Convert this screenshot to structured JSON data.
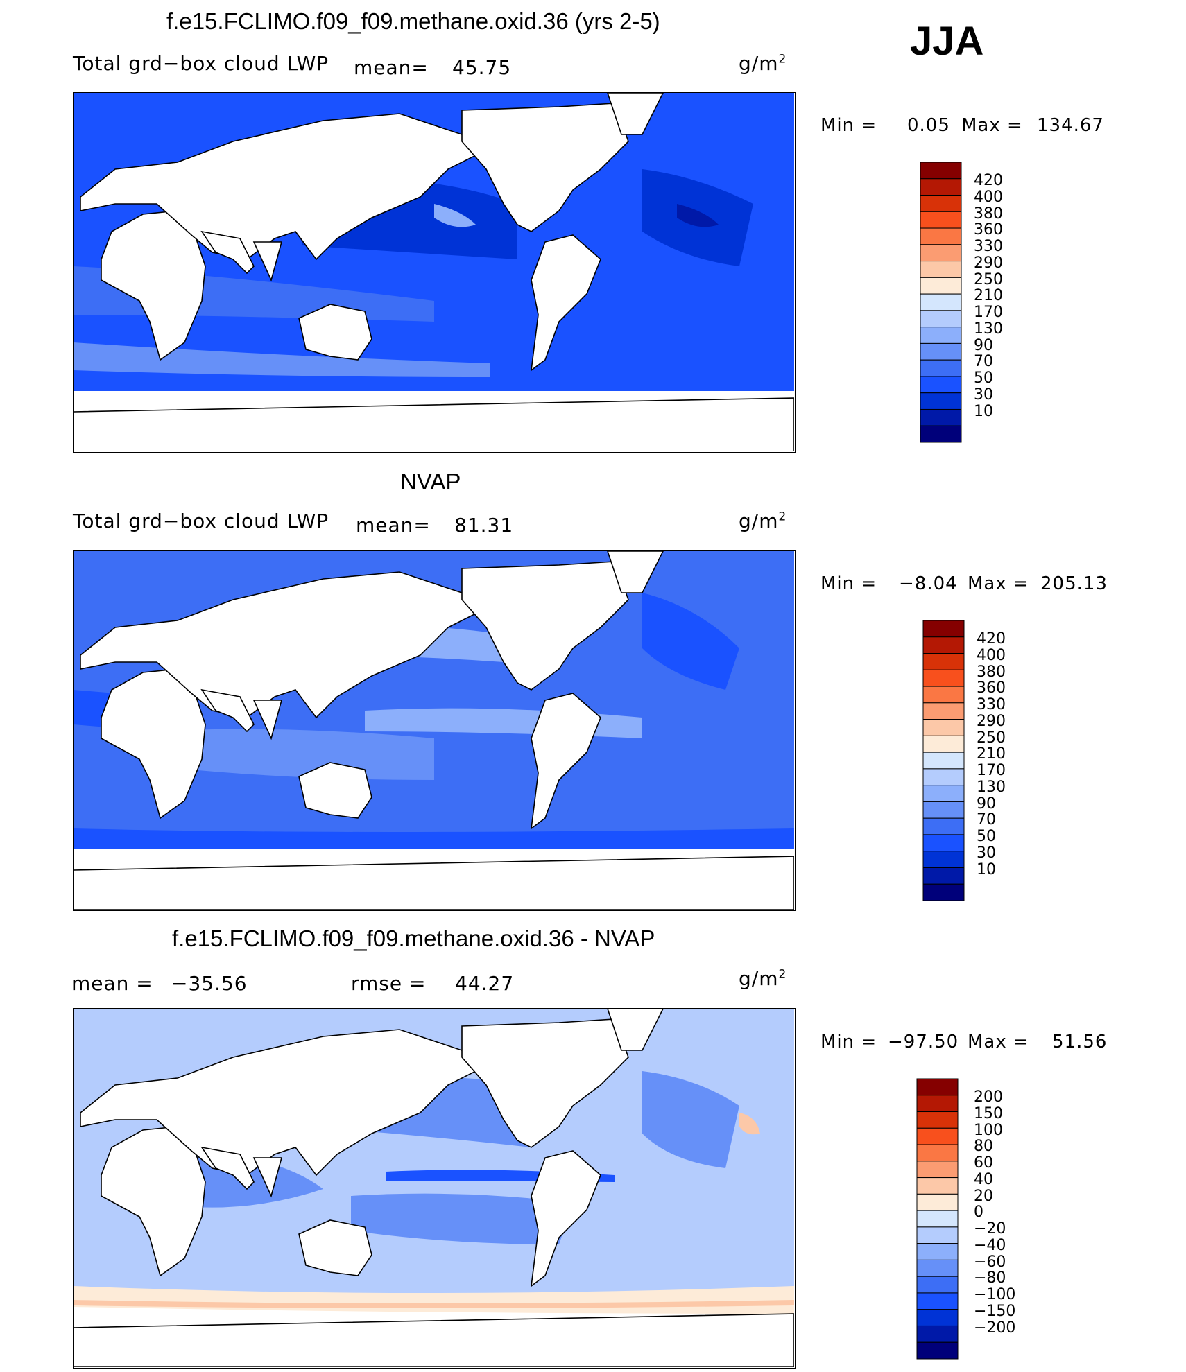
{
  "season": "JJA",
  "units_text": "g/m",
  "units_sup": "2",
  "panels": [
    {
      "title": "f.e15.FCLIMO.f09_f09.methane.oxid.36 (yrs 2-5)",
      "variable": "Total grd−box cloud LWP",
      "mean_label": "mean=",
      "mean_value": "45.75",
      "min_label": "Min =",
      "min_value": "0.05",
      "max_label": "Max =",
      "max_value": "134.67"
    },
    {
      "title": "NVAP",
      "variable": "Total grd−box cloud LWP",
      "mean_label": "mean=",
      "mean_value": "81.31",
      "min_label": "Min =",
      "min_value": "−8.04",
      "max_label": "Max =",
      "max_value": "205.13"
    },
    {
      "title": "f.e15.FCLIMO.f09_f09.methane.oxid.36 - NVAP",
      "mean_label": "mean =",
      "mean_value": "−35.56",
      "rmse_label": "rmse =",
      "rmse_value": "44.27",
      "min_label": "Min =",
      "min_value": "−97.50",
      "max_label": "Max =",
      "max_value": "51.56"
    }
  ],
  "colors": {
    "abs_scale": [
      "#00007a",
      "#0019a8",
      "#0033d6",
      "#1a52ff",
      "#3d6ef5",
      "#6690f8",
      "#8caffb",
      "#b4ccfd",
      "#d4e6fd",
      "#fdebd8",
      "#fcc8a8",
      "#fb9c72",
      "#fa7744",
      "#f8501d",
      "#d83208",
      "#b41804",
      "#850000"
    ],
    "diff_scale": [
      "#00007a",
      "#0019a8",
      "#0033d6",
      "#1a52ff",
      "#3d6ef5",
      "#6690f8",
      "#8caffb",
      "#b4ccfd",
      "#d4e6fd",
      "#fdebd8",
      "#fcc8a8",
      "#fb9c72",
      "#fa7744",
      "#f8501d",
      "#d83208",
      "#b41804",
      "#850000"
    ]
  },
  "chart_data": [
    {
      "type": "heatmap",
      "title": "f.e15.FCLIMO.f09_f09.methane.oxid.36 (yrs 2-5)",
      "subtitle": "Total grd-box cloud LWP",
      "units": "g/m2",
      "mean": 45.75,
      "min": 0.05,
      "max": 134.67,
      "colorbar_levels": [
        "10",
        "30",
        "50",
        "70",
        "90",
        "130",
        "170",
        "210",
        "250",
        "290",
        "330",
        "360",
        "380",
        "400",
        "420"
      ]
    },
    {
      "type": "heatmap",
      "title": "NVAP",
      "subtitle": "Total grd-box cloud LWP",
      "units": "g/m2",
      "mean": 81.31,
      "min": -8.04,
      "max": 205.13,
      "colorbar_levels": [
        "10",
        "30",
        "50",
        "70",
        "90",
        "130",
        "170",
        "210",
        "250",
        "290",
        "330",
        "360",
        "380",
        "400",
        "420"
      ]
    },
    {
      "type": "heatmap",
      "title": "f.e15.FCLIMO.f09_f09.methane.oxid.36 - NVAP",
      "units": "g/m2",
      "mean": -35.56,
      "rmse": 44.27,
      "min": -97.5,
      "max": 51.56,
      "colorbar_levels": [
        "−200",
        "−150",
        "−100",
        "−80",
        "−60",
        "−40",
        "−20",
        "0",
        "20",
        "40",
        "60",
        "80",
        "100",
        "150",
        "200"
      ]
    }
  ]
}
